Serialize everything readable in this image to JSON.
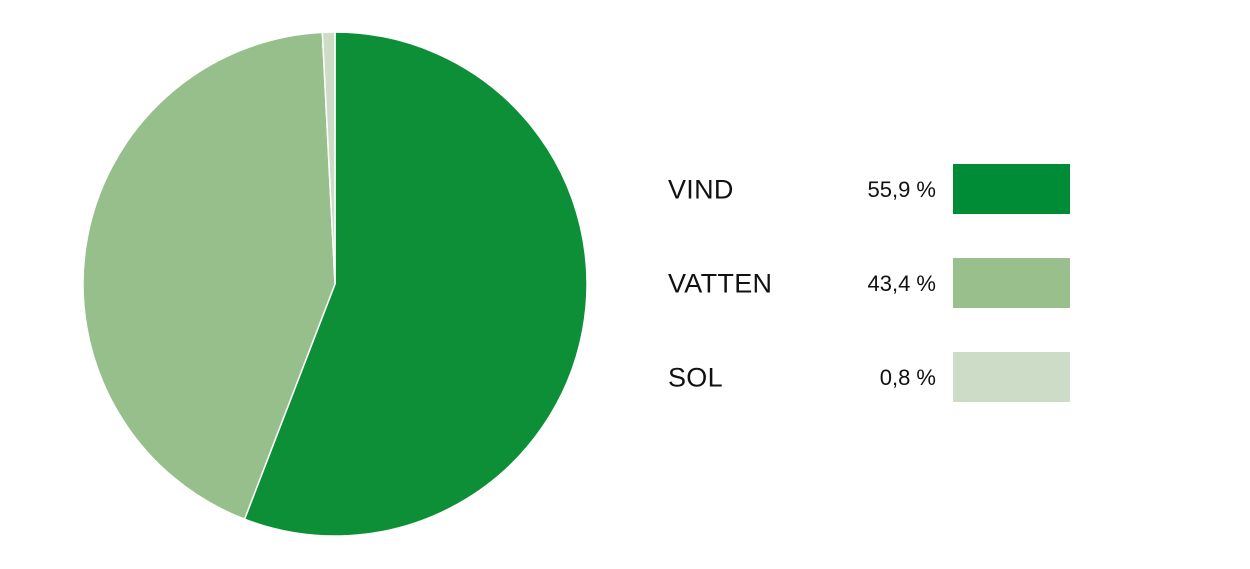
{
  "chart_data": {
    "type": "pie",
    "slices": [
      {
        "label": "VIND",
        "value": 55.9,
        "display": "55,9 %",
        "color": "#0d8f38",
        "swatch_color": "#008b36"
      },
      {
        "label": "VATTEN",
        "value": 43.4,
        "display": "43,4 %",
        "color": "#96bf8b",
        "swatch_color": "#99c08c"
      },
      {
        "label": "SOL",
        "value": 0.8,
        "display": "0,8 %",
        "color": "#cddcc6",
        "swatch_color": "#cddcc6"
      }
    ],
    "start_angle": "12 o'clock",
    "direction": "clockwise",
    "legend_position": "right"
  }
}
